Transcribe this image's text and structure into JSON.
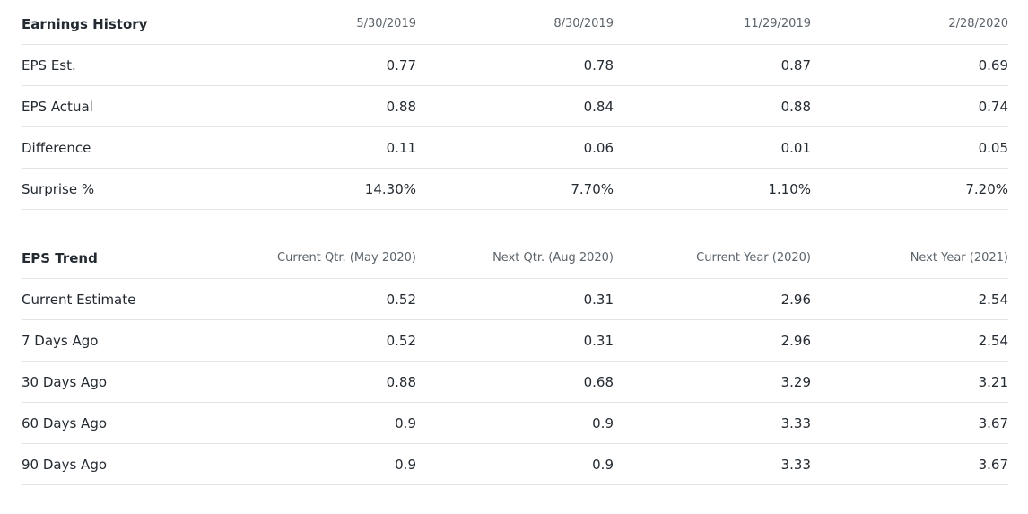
{
  "earnings_history": {
    "title": "Earnings History",
    "columns": [
      "5/30/2019",
      "8/30/2019",
      "11/29/2019",
      "2/28/2020"
    ],
    "rows": [
      {
        "label": "EPS Est.",
        "values": [
          "0.77",
          "0.78",
          "0.87",
          "0.69"
        ]
      },
      {
        "label": "EPS Actual",
        "values": [
          "0.88",
          "0.84",
          "0.88",
          "0.74"
        ]
      },
      {
        "label": "Difference",
        "values": [
          "0.11",
          "0.06",
          "0.01",
          "0.05"
        ]
      },
      {
        "label": "Surprise %",
        "values": [
          "14.30%",
          "7.70%",
          "1.10%",
          "7.20%"
        ]
      }
    ]
  },
  "eps_trend": {
    "title": "EPS Trend",
    "columns": [
      "Current Qtr. (May 2020)",
      "Next Qtr. (Aug 2020)",
      "Current Year (2020)",
      "Next Year (2021)"
    ],
    "rows": [
      {
        "label": "Current Estimate",
        "values": [
          "0.52",
          "0.31",
          "2.96",
          "2.54"
        ]
      },
      {
        "label": "7 Days Ago",
        "values": [
          "0.52",
          "0.31",
          "2.96",
          "2.54"
        ]
      },
      {
        "label": "30 Days Ago",
        "values": [
          "0.88",
          "0.68",
          "3.29",
          "3.21"
        ]
      },
      {
        "label": "60 Days Ago",
        "values": [
          "0.9",
          "0.9",
          "3.33",
          "3.67"
        ]
      },
      {
        "label": "90 Days Ago",
        "values": [
          "0.9",
          "0.9",
          "3.33",
          "3.67"
        ]
      }
    ]
  }
}
